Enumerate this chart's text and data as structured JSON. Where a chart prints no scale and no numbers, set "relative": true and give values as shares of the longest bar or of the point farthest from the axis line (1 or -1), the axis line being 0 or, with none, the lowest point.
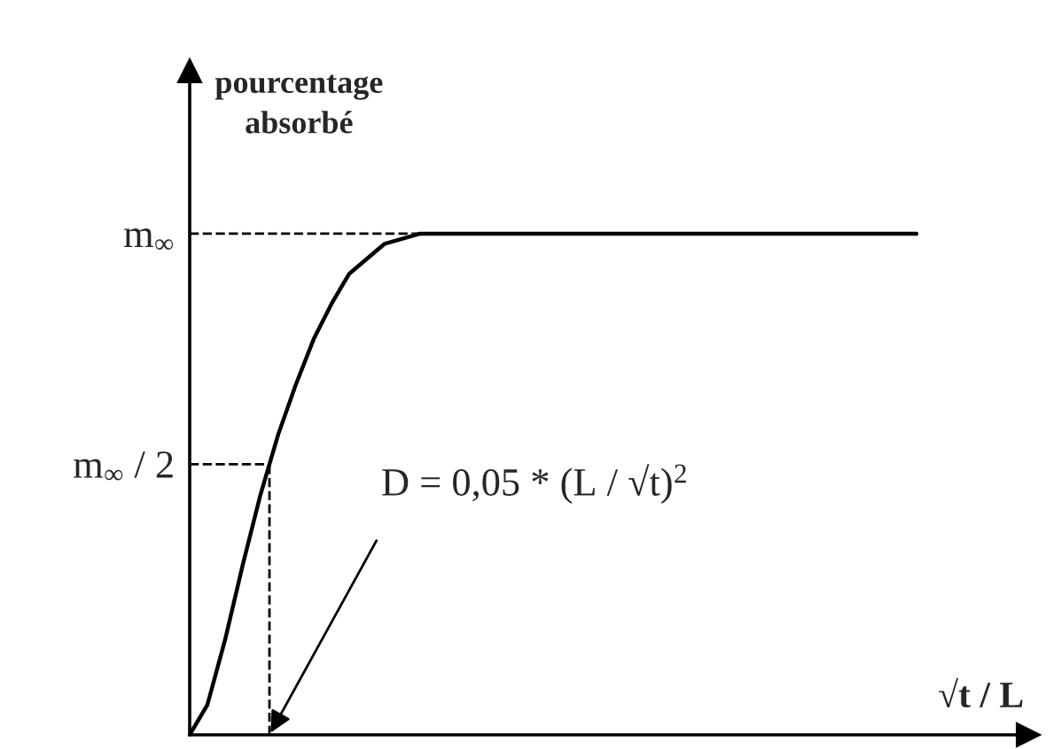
{
  "chart_data": {
    "type": "line",
    "relative": true,
    "xlabel": "√t / L",
    "ylabel": "pourcentage\nabsorbé",
    "categories": [
      null,
      null,
      null,
      null,
      null,
      null,
      null,
      null,
      null,
      null,
      null,
      null,
      null,
      null,
      null,
      null,
      null,
      null,
      null,
      null,
      null,
      null,
      null,
      null,
      null,
      null,
      null,
      null,
      null,
      null,
      null,
      null,
      null,
      null,
      null,
      null,
      null,
      null,
      null,
      null,
      null,
      null
    ],
    "series": [
      {
        "color": "#000000",
        "values": [
          0,
          0.06,
          0.19,
          0.34,
          0.48,
          0.6,
          0.7,
          0.79,
          0.86,
          0.92,
          0.95,
          0.98,
          0.99,
          1,
          1,
          1,
          1,
          1,
          1,
          1,
          1,
          1,
          1,
          1,
          1,
          1,
          1,
          1,
          1,
          1,
          1,
          1,
          1,
          1,
          1,
          1,
          1,
          1,
          1,
          1,
          1,
          1
        ]
      }
    ],
    "ref_lines": [
      {
        "axis": "y",
        "value": 1,
        "label": "m$_{∞}$",
        "line_style": "dashed"
      },
      {
        "axis": "y",
        "value": 0.54,
        "label": "m$_{∞}$ / 2",
        "line_style": "dashed"
      }
    ],
    "annotations": [
      "D = 0,05 * (L / √t)$^{2}$"
    ],
    "grid": false,
    "marker": "none",
    "line_style": "solid"
  }
}
